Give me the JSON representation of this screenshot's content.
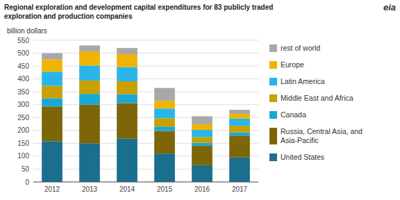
{
  "chart_data": {
    "type": "bar",
    "stacked": true,
    "title": "Regional exploration and development capital expenditures for 83 publicly traded",
    "subtitle": "exploration and production companies",
    "ylabel": "billion dollars",
    "annotations": [
      "eia"
    ],
    "categories": [
      "2012",
      "2013",
      "2014",
      "2015",
      "2016",
      "2017"
    ],
    "series": [
      {
        "name": "United States",
        "color": "#1a6e8e",
        "values": [
          158,
          150,
          168,
          110,
          65,
          95
        ]
      },
      {
        "name": "Russia, Central Asia, and Asia-Pacific",
        "color": "#7d6608",
        "values": [
          135,
          150,
          138,
          88,
          75,
          85
        ]
      },
      {
        "name": "Canada",
        "color": "#1aa8d4",
        "values": [
          32,
          42,
          35,
          17,
          12,
          13
        ]
      },
      {
        "name": "Middle East and Africa",
        "color": "#c8a000",
        "values": [
          48,
          52,
          50,
          32,
          22,
          25
        ]
      },
      {
        "name": "Latin America",
        "color": "#29b5e8",
        "values": [
          55,
          58,
          55,
          38,
          28,
          28
        ]
      },
      {
        "name": "Europe",
        "color": "#f0b400",
        "values": [
          48,
          55,
          50,
          30,
          22,
          18
        ]
      },
      {
        "name": "rest of world",
        "color": "#a8a8a8",
        "values": [
          24,
          23,
          24,
          50,
          31,
          16
        ]
      }
    ],
    "ylim": [
      0,
      550
    ],
    "yticks": [
      0,
      50,
      100,
      150,
      200,
      250,
      300,
      350,
      400,
      450,
      500,
      550
    ],
    "grid": true,
    "legend": "right"
  }
}
